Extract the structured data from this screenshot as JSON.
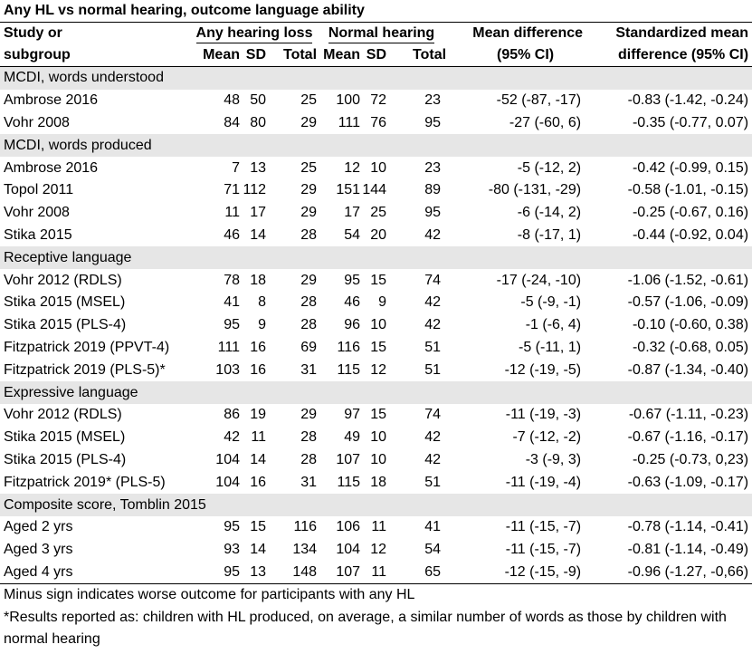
{
  "title": "Any HL vs normal hearing, outcome language ability",
  "headers": {
    "study_line1": "Study or",
    "study_line2": "subgroup",
    "hl_group": "Any hearing loss",
    "nh_group": "Normal hearing",
    "md_line1": "Mean difference",
    "md_line2": "(95% CI)",
    "smd_line1": "Standardized mean",
    "smd_line2": "difference (95% CI)",
    "mean": "Mean",
    "sd": "SD",
    "total": "Total"
  },
  "groups": [
    {
      "label": "MCDI, words understood",
      "rows": [
        {
          "study": "Ambrose 2016",
          "hl_mean": "48",
          "hl_sd": "50",
          "hl_total": "25",
          "nh_mean": "100",
          "nh_sd": "72",
          "nh_total": "23",
          "md": "-52 (-87, -17)",
          "smd": "-0.83 (-1.42, -0.24)"
        },
        {
          "study": "Vohr 2008",
          "hl_mean": "84",
          "hl_sd": "80",
          "hl_total": "29",
          "nh_mean": "111",
          "nh_sd": "76",
          "nh_total": "95",
          "md": "-27 (-60, 6)",
          "smd": "-0.35 (-0.77, 0.07)"
        }
      ]
    },
    {
      "label": "MCDI, words produced",
      "rows": [
        {
          "study": "Ambrose 2016",
          "hl_mean": "7",
          "hl_sd": "13",
          "hl_total": "25",
          "nh_mean": "12",
          "nh_sd": "10",
          "nh_total": "23",
          "md": "-5 (-12, 2)",
          "smd": "-0.42 (-0.99, 0.15)"
        },
        {
          "study": "Topol 2011",
          "hl_mean": "71",
          "hl_sd": "112",
          "hl_total": "29",
          "nh_mean": "151",
          "nh_sd": "144",
          "nh_total": "89",
          "md": "-80 (-131, -29)",
          "smd": "-0.58 (-1.01, -0.15)"
        },
        {
          "study": "Vohr 2008",
          "hl_mean": "11",
          "hl_sd": "17",
          "hl_total": "29",
          "nh_mean": "17",
          "nh_sd": "25",
          "nh_total": "95",
          "md": "-6 (-14, 2)",
          "smd": "-0.25 (-0.67, 0.16)"
        },
        {
          "study": "Stika 2015",
          "hl_mean": "46",
          "hl_sd": "14",
          "hl_total": "28",
          "nh_mean": "54",
          "nh_sd": "20",
          "nh_total": "42",
          "md": "-8 (-17, 1)",
          "smd": "-0.44 (-0.92, 0.04)"
        }
      ]
    },
    {
      "label": "Receptive language",
      "rows": [
        {
          "study": "Vohr 2012 (RDLS)",
          "hl_mean": "78",
          "hl_sd": "18",
          "hl_total": "29",
          "nh_mean": "95",
          "nh_sd": "15",
          "nh_total": "74",
          "md": "-17 (-24, -10)",
          "smd": "-1.06 (-1.52, -0.61)"
        },
        {
          "study": "Stika 2015 (MSEL)",
          "hl_mean": "41",
          "hl_sd": "8",
          "hl_total": "28",
          "nh_mean": "46",
          "nh_sd": "9",
          "nh_total": "42",
          "md": "-5 (-9, -1)",
          "smd": "-0.57 (-1.06, -0.09)"
        },
        {
          "study": "Stika 2015 (PLS-4)",
          "hl_mean": "95",
          "hl_sd": "9",
          "hl_total": "28",
          "nh_mean": "96",
          "nh_sd": "10",
          "nh_total": "42",
          "md": "-1 (-6, 4)",
          "smd": "-0.10 (-0.60, 0.38)"
        },
        {
          "study": "Fitzpatrick 2019 (PPVT-4)",
          "hl_mean": "111",
          "hl_sd": "16",
          "hl_total": "69",
          "nh_mean": "116",
          "nh_sd": "15",
          "nh_total": "51",
          "md": "-5 (-11, 1)",
          "smd": "-0.32 (-0.68, 0.05)"
        },
        {
          "study": "Fitzpatrick 2019 (PLS-5)*",
          "hl_mean": "103",
          "hl_sd": "16",
          "hl_total": "31",
          "nh_mean": "115",
          "nh_sd": "12",
          "nh_total": "51",
          "md": "-12 (-19, -5)",
          "smd": "-0.87 (-1.34, -0.40)"
        }
      ]
    },
    {
      "label": "Expressive language",
      "rows": [
        {
          "study": "Vohr 2012 (RDLS)",
          "hl_mean": "86",
          "hl_sd": "19",
          "hl_total": "29",
          "nh_mean": "97",
          "nh_sd": "15",
          "nh_total": "74",
          "md": "-11 (-19, -3)",
          "smd": "-0.67 (-1.11, -0.23)"
        },
        {
          "study": "Stika 2015 (MSEL)",
          "hl_mean": "42",
          "hl_sd": "11",
          "hl_total": "28",
          "nh_mean": "49",
          "nh_sd": "10",
          "nh_total": "42",
          "md": "-7 (-12, -2)",
          "smd": "-0.67 (-1.16, -0.17)"
        },
        {
          "study": "Stika 2015 (PLS-4)",
          "hl_mean": "104",
          "hl_sd": "14",
          "hl_total": "28",
          "nh_mean": "107",
          "nh_sd": "10",
          "nh_total": "42",
          "md": "-3 (-9, 3)",
          "smd": "-0.25 (-0.73, 0,23)"
        },
        {
          "study": "Fitzpatrick 2019* (PLS-5)",
          "hl_mean": "104",
          "hl_sd": "16",
          "hl_total": "31",
          "nh_mean": "115",
          "nh_sd": "18",
          "nh_total": "51",
          "md": "-11 (-19, -4)",
          "smd": "-0.63 (-1.09, -0.17)"
        }
      ]
    },
    {
      "label": "Composite score, Tomblin 2015",
      "rows": [
        {
          "study": "Aged 2 yrs",
          "hl_mean": "95",
          "hl_sd": "15",
          "hl_total": "116",
          "nh_mean": "106",
          "nh_sd": "11",
          "nh_total": "41",
          "md": "-11 (-15, -7)",
          "smd": "-0.78 (-1.14, -0.41)"
        },
        {
          "study": "Aged 3 yrs",
          "hl_mean": "93",
          "hl_sd": "14",
          "hl_total": "134",
          "nh_mean": "104",
          "nh_sd": "12",
          "nh_total": "54",
          "md": "-11 (-15, -7)",
          "smd": "-0.81 (-1.14, -0.49)"
        },
        {
          "study": "Aged 4 yrs",
          "hl_mean": "95",
          "hl_sd": "13",
          "hl_total": "148",
          "nh_mean": "107",
          "nh_sd": "11",
          "nh_total": "65",
          "md": "-12 (-15, -9)",
          "smd": "-0.96 (-1.27, -0,66)"
        }
      ]
    }
  ],
  "notes": [
    "Minus sign indicates worse outcome for participants with any HL",
    "*Results reported as: children with HL produced, on average, a similar number of words as those by children with normal hearing"
  ]
}
